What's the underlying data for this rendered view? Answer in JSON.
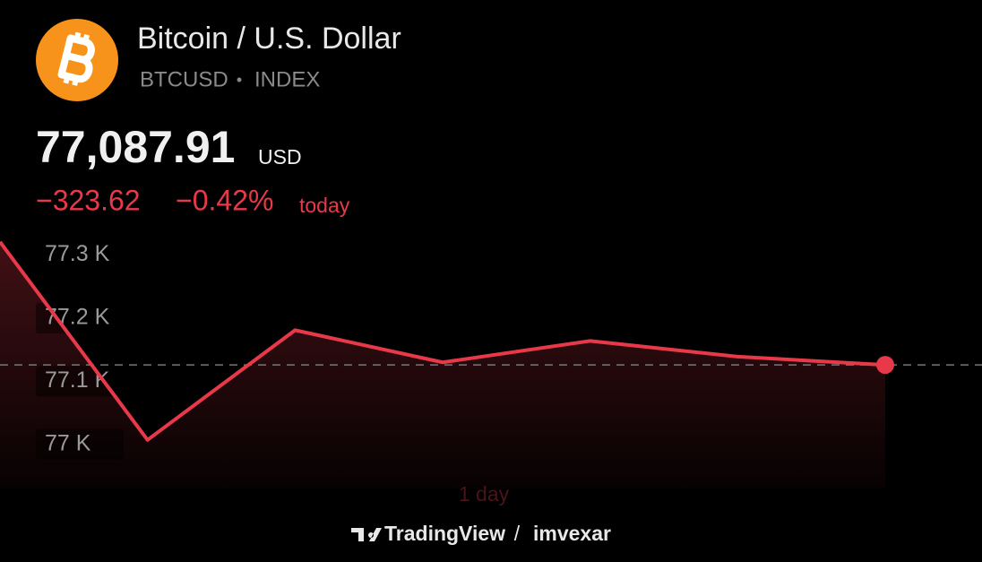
{
  "header": {
    "title": "Bitcoin / U.S. Dollar",
    "symbol": "BTCUSD",
    "separator": "•",
    "exchange": "INDEX"
  },
  "quote": {
    "price": "77,087.91",
    "currency": "USD",
    "change": "−323.62",
    "change_percent": "−0.42%",
    "period": "today"
  },
  "chart_data": {
    "type": "line",
    "categories": [
      null,
      null,
      null,
      null,
      null,
      null,
      null
    ],
    "values": [
      77321,
      77007,
      77181,
      77130,
      77164,
      77139,
      77126
    ],
    "color": "#e8394a",
    "ylim": [
      76930,
      77335
    ],
    "yticks": [
      {
        "value": 77300,
        "label": "77.3 K"
      },
      {
        "value": 77200,
        "label": "77.2 K"
      },
      {
        "value": 77100,
        "label": "77.1 K"
      },
      {
        "value": 77000,
        "label": "77 K"
      }
    ],
    "range_label": "1 day"
  },
  "footer": {
    "brand": "TradingView",
    "separator": "/",
    "user": "imvexar"
  }
}
